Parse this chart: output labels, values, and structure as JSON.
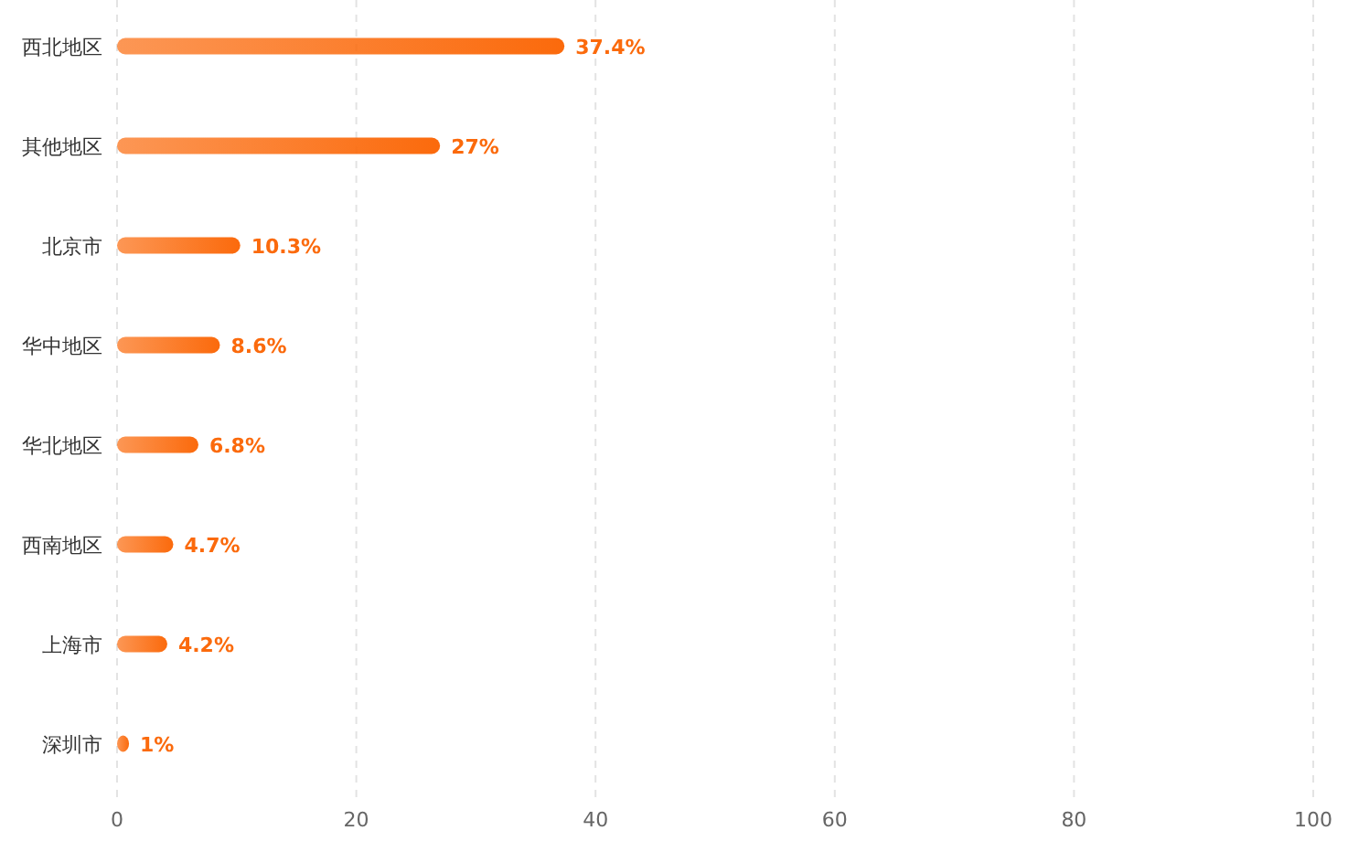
{
  "chart_data": {
    "type": "bar",
    "orientation": "horizontal",
    "categories": [
      "西北地区",
      "其他地区",
      "北京市",
      "华中地区",
      "华北地区",
      "西南地区",
      "上海市",
      "深圳市"
    ],
    "values": [
      37.4,
      27,
      10.3,
      8.6,
      6.8,
      4.7,
      4.2,
      1
    ],
    "value_labels": [
      "37.4%",
      "27%",
      "10.3%",
      "8.6%",
      "6.8%",
      "4.7%",
      "4.2%",
      "1%"
    ],
    "color": "#fb6a0c",
    "xlim": [
      0,
      100
    ],
    "xticks": [
      0,
      20,
      40,
      60,
      80,
      100
    ],
    "grid": "x"
  }
}
